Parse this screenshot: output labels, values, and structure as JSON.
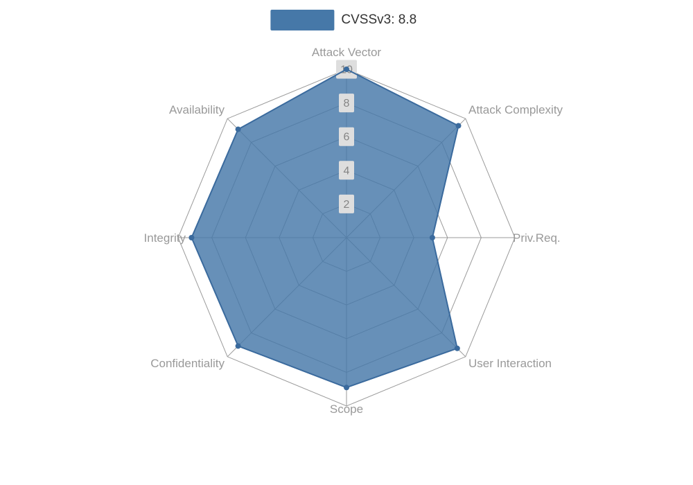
{
  "legend": {
    "series_name": "CVSSv3: 8.8"
  },
  "chart_data": {
    "type": "radar",
    "title": "CVSSv3: 8.8",
    "axes": [
      "Attack Vector",
      "Attack Complexity",
      "Priv.Req.",
      "User Interaction",
      "Scope",
      "Confidentiality",
      "Integrity",
      "Availability"
    ],
    "series": [
      {
        "name": "CVSSv3: 8.8",
        "values": [
          10,
          9.4,
          5.1,
          9.3,
          8.9,
          9.1,
          9.2,
          9.1
        ]
      }
    ],
    "scale": {
      "min": 0,
      "max": 10,
      "tick_labels": [
        "2",
        "4",
        "6",
        "8",
        "10"
      ],
      "tick_values": [
        2,
        4,
        6,
        8,
        10
      ]
    },
    "grid": {
      "shape": "octagon",
      "rings": 5,
      "grid_on": true
    },
    "legend_position": "top-center",
    "colors": {
      "series_fill": "#4678a8",
      "series_fill_opacity": 0.82,
      "series_line": "#3a6a9d",
      "grid_line": "#9a9a9a",
      "axis_label": "#999999",
      "tick_text": "#848484",
      "tick_box": "#dedede",
      "legend_text": "#333333",
      "background": "#ffffff"
    }
  }
}
